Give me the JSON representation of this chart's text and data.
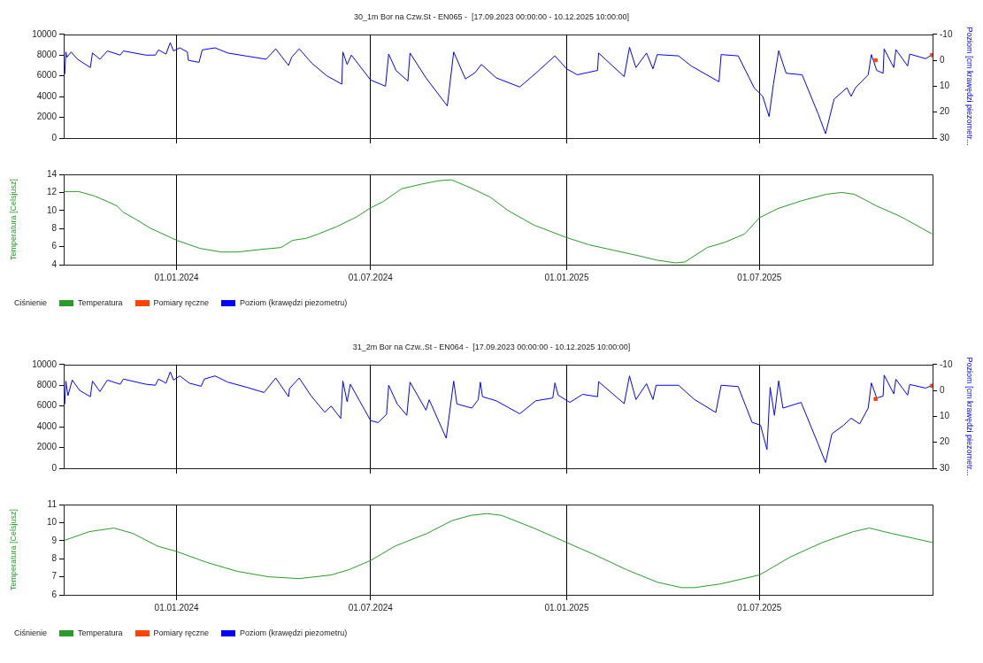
{
  "chart_data": [
    {
      "type": "line",
      "title": "30_1m Bor na Czw.St - EN065 -  [17.09.2023 00:00:00 - 10.12.2025 10:00:00]",
      "y2label": "Poziom [cm krawędzi piezometr...",
      "tick_labels": "y",
      "xlim": [
        "2023-09-17T00:00",
        "2025-12-10T10:00"
      ],
      "xticks": [
        "2024-01-01",
        "2024-07-01",
        "2025-01-01",
        "2025-07-01"
      ],
      "ylim": [
        0,
        10000
      ],
      "yticks": [
        0,
        2000,
        4000,
        6000,
        8000,
        10000
      ],
      "y2lim": [
        30,
        -10
      ],
      "y2ticks": [
        -10,
        0,
        10,
        20,
        30
      ],
      "grid": "x",
      "series": [
        {
          "name": "Ciśnienie",
          "axis": "y"
        },
        {
          "name": "Pomiary ręczne",
          "type": "scatter",
          "marker": "square",
          "axis": "y2",
          "color": "#ff4500",
          "x": [
            "2025-10-18",
            "2025-12-10"
          ],
          "values": [
            0,
            -2
          ]
        },
        {
          "name": "Poziom (krawędzi piezometru)",
          "type": "line",
          "axis": "y2",
          "color": "#0000ff",
          "x": [
            "2023-09-17",
            "2023-09-18",
            "2023-09-19",
            "2023-09-20",
            "2023-09-24",
            "2023-09-30",
            "2023-10-12",
            "2023-10-14",
            "2023-10-21",
            "2023-10-28",
            "2023-11-09",
            "2023-11-12",
            "2023-12-03",
            "2023-12-12",
            "2023-12-15",
            "2023-12-22",
            "2023-12-26",
            "2023-12-29",
            "2024-01-04",
            "2024-01-11",
            "2024-01-12",
            "2024-01-22",
            "2024-01-25",
            "2024-02-06",
            "2024-02-18",
            "2024-03-07",
            "2024-03-25",
            "2024-04-03",
            "2024-04-15",
            "2024-04-18",
            "2024-04-25",
            "2024-05-07",
            "2024-05-21",
            "2024-06-04",
            "2024-06-05",
            "2024-06-09",
            "2024-06-13",
            "2024-07-01",
            "2024-07-15",
            "2024-07-18",
            "2024-07-25",
            "2024-08-05",
            "2024-08-07",
            "2024-08-22",
            "2024-09-11",
            "2024-09-17",
            "2024-09-28",
            "2024-10-07",
            "2024-10-13",
            "2024-10-27",
            "2024-11-18",
            "2024-12-03",
            "2024-12-21",
            "2025-01-01",
            "2025-01-11",
            "2025-01-30",
            "2025-01-31",
            "2025-02-24",
            "2025-03-01",
            "2025-03-07",
            "2025-03-17",
            "2025-03-23",
            "2025-03-27",
            "2025-04-16",
            "2025-04-28",
            "2025-05-24",
            "2025-05-26",
            "2025-06-11",
            "2025-06-26",
            "2025-07-04",
            "2025-07-10",
            "2025-07-14",
            "2025-07-19",
            "2025-07-26",
            "2025-08-10",
            "2025-08-25",
            "2025-09-01",
            "2025-09-09",
            "2025-09-21",
            "2025-09-25",
            "2025-09-29",
            "2025-10-11",
            "2025-10-14",
            "2025-10-19",
            "2025-10-25",
            "2025-10-26",
            "2025-11-04",
            "2025-11-06",
            "2025-11-17",
            "2025-11-19",
            "2025-12-04",
            "2025-12-10"
          ],
          "values": [
            4,
            5.2,
            -3.2,
            -1.2,
            -3.2,
            -0.4,
            2.8,
            -2.8,
            -0.4,
            -3.6,
            -2,
            -3.6,
            -2,
            -2,
            -4,
            -2.4,
            -6.8,
            -3.6,
            -4.8,
            -3.2,
            0,
            0.8,
            -4,
            -4.8,
            -2.8,
            -1.6,
            -0.4,
            -4.4,
            2,
            -1.2,
            -4.4,
            1.2,
            6,
            9.2,
            -3.2,
            1.6,
            -2,
            7.6,
            10,
            -2.4,
            4,
            8,
            -2.8,
            6.8,
            17.6,
            -3.2,
            7.2,
            4.8,
            1.6,
            6.8,
            10.3,
            5,
            -1.7,
            3.3,
            5.6,
            3.9,
            -2.8,
            6.3,
            -5,
            2.8,
            -2.8,
            3.3,
            -2.2,
            -1.7,
            2.2,
            8.3,
            -2.2,
            -1.7,
            10.6,
            13.9,
            21.7,
            9.4,
            -3.7,
            5,
            5.6,
            20.6,
            28.3,
            15,
            10.6,
            13.9,
            10.6,
            5.6,
            -2.2,
            3.9,
            5,
            -4.4,
            2.8,
            -4.1,
            2.2,
            -2.4,
            -0.6,
            -2.2
          ]
        }
      ]
    },
    {
      "type": "line",
      "ylabel": "Temperatura [Celsjusz]",
      "xlim": [
        "2023-09-17T00:00",
        "2025-12-10T10:00"
      ],
      "xticks": [
        {
          "value": "2024-01-01",
          "label": "01.01.2024"
        },
        {
          "value": "2024-07-01",
          "label": "01.07.2024"
        },
        {
          "value": "2025-01-01",
          "label": "01.01.2025"
        },
        {
          "value": "2025-07-01",
          "label": "01.07.2025"
        }
      ],
      "ylim": [
        4,
        14
      ],
      "yticks": [
        4,
        6,
        8,
        10,
        12,
        14
      ],
      "grid": "x",
      "legend": "bottom",
      "series": [
        {
          "name": "Temperatura",
          "color": "#2a9a2a",
          "x": [
            "2023-09-17",
            "2023-10-01",
            "2023-10-16",
            "2023-10-28",
            "2023-11-06",
            "2023-11-12",
            "2023-11-24",
            "2023-12-08",
            "2024-01-01",
            "2024-01-23",
            "2024-02-12",
            "2024-02-27",
            "2024-03-21",
            "2024-04-08",
            "2024-04-19",
            "2024-05-01",
            "2024-05-13",
            "2024-05-30",
            "2024-06-18",
            "2024-07-01",
            "2024-07-13",
            "2024-07-30",
            "2024-08-17",
            "2024-09-03",
            "2024-09-15",
            "2024-10-03",
            "2024-10-21",
            "2024-11-07",
            "2024-12-01",
            "2025-01-01",
            "2025-01-22",
            "2025-02-14",
            "2025-03-09",
            "2025-03-27",
            "2025-04-13",
            "2025-04-22",
            "2025-05-13",
            "2025-05-30",
            "2025-06-17",
            "2025-07-01",
            "2025-07-18",
            "2025-08-10",
            "2025-09-02",
            "2025-09-16",
            "2025-09-28",
            "2025-10-19",
            "2025-11-11",
            "2025-12-10"
          ],
          "values": [
            12.1,
            12.1,
            11.6,
            11,
            10.5,
            9.8,
            9,
            8,
            6.7,
            5.8,
            5.4,
            5.4,
            5.7,
            5.9,
            6.7,
            6.9,
            7.4,
            8.2,
            9.3,
            10.3,
            11,
            12.4,
            12.9,
            13.3,
            13.4,
            12.5,
            11.5,
            10,
            8.4,
            7,
            6.2,
            5.6,
            5,
            4.5,
            4.2,
            4.3,
            5.9,
            6.5,
            7.4,
            9.2,
            10.2,
            11.1,
            11.8,
            12,
            11.8,
            10.5,
            9.3,
            7.4
          ]
        }
      ]
    },
    {
      "type": "line",
      "title": "31_2m Bor na Czw..St - EN064 -  [17.09.2023 00:00:00 - 10.12.2025 10:00:00]",
      "y2label": "Poziom [cm krawędzi piezometr...",
      "tick_labels": "y",
      "xlim": [
        "2023-09-17T00:00",
        "2025-12-10T10:00"
      ],
      "xticks": [
        "2024-01-01",
        "2024-07-01",
        "2025-01-01",
        "2025-07-01"
      ],
      "ylim": [
        0,
        10000
      ],
      "yticks": [
        0,
        2000,
        4000,
        6000,
        8000,
        10000
      ],
      "y2lim": [
        30,
        -10
      ],
      "y2ticks": [
        -10,
        0,
        10,
        20,
        30
      ],
      "grid": "x",
      "series": [
        {
          "name": "Ciśnienie",
          "axis": "y"
        },
        {
          "name": "Pomiary ręczne",
          "type": "scatter",
          "marker": "square",
          "axis": "y2",
          "color": "#ff4500",
          "x": [
            "2025-10-18",
            "2025-12-10"
          ],
          "values": [
            3.3,
            -1.8
          ]
        },
        {
          "name": "Poziom (krawędzi piezometru)",
          "type": "line",
          "axis": "y2",
          "color": "#0000ff",
          "x": [
            "2023-09-17",
            "2023-09-18",
            "2023-09-19",
            "2023-09-21",
            "2023-09-25",
            "2023-10-02",
            "2023-10-12",
            "2023-10-14",
            "2023-10-21",
            "2023-10-28",
            "2023-11-09",
            "2023-11-12",
            "2023-12-03",
            "2023-12-12",
            "2023-12-15",
            "2023-12-22",
            "2023-12-26",
            "2023-12-29",
            "2024-01-04",
            "2024-01-13",
            "2024-01-24",
            "2024-01-27",
            "2024-02-06",
            "2024-02-18",
            "2024-03-07",
            "2024-03-23",
            "2024-04-03",
            "2024-04-15",
            "2024-04-16",
            "2024-04-25",
            "2024-05-06",
            "2024-05-19",
            "2024-05-25",
            "2024-06-03",
            "2024-06-05",
            "2024-06-09",
            "2024-06-12",
            "2024-07-01",
            "2024-07-08",
            "2024-07-16",
            "2024-07-18",
            "2024-07-26",
            "2024-08-04",
            "2024-08-07",
            "2024-08-22",
            "2024-08-25",
            "2024-09-10",
            "2024-09-17",
            "2024-09-20",
            "2024-10-04",
            "2024-10-10",
            "2024-10-12",
            "2024-10-14",
            "2024-10-27",
            "2024-11-18",
            "2024-12-03",
            "2024-12-19",
            "2024-12-21",
            "2024-12-24",
            "2025-01-04",
            "2025-01-16",
            "2025-01-30",
            "2025-01-31",
            "2025-02-24",
            "2025-03-01",
            "2025-03-07",
            "2025-03-17",
            "2025-03-23",
            "2025-03-26",
            "2025-04-16",
            "2025-05-01",
            "2025-05-21",
            "2025-05-26",
            "2025-06-11",
            "2025-06-24",
            "2025-07-02",
            "2025-07-08",
            "2025-07-11",
            "2025-07-15",
            "2025-07-19",
            "2025-07-23",
            "2025-08-09",
            "2025-08-25",
            "2025-09-01",
            "2025-09-07",
            "2025-09-18",
            "2025-09-25",
            "2025-10-03",
            "2025-10-11",
            "2025-10-14",
            "2025-10-19",
            "2025-10-25",
            "2025-10-26",
            "2025-11-04",
            "2025-11-06",
            "2025-11-17",
            "2025-11-19",
            "2025-12-04",
            "2025-12-10"
          ],
          "values": [
            4.4,
            5.2,
            -3.6,
            2,
            -4,
            0,
            2.4,
            -3.6,
            0.4,
            -4,
            -2.4,
            -4.4,
            -2.4,
            -2,
            -4.4,
            -2.8,
            -7.2,
            -4,
            -5.6,
            -2.8,
            -1.6,
            -4.4,
            -5.6,
            -3.2,
            -1.2,
            0.8,
            -4.8,
            2.4,
            -0.8,
            -4.8,
            2,
            8.4,
            6,
            10.8,
            -3.6,
            4.4,
            -2.4,
            11.6,
            12.4,
            9.2,
            -2,
            5.2,
            9.6,
            -3.2,
            7.6,
            3.6,
            18.4,
            -3.6,
            5.2,
            6.8,
            3.6,
            -3.2,
            2.4,
            4,
            9,
            4,
            2.9,
            -2.9,
            1.8,
            4.6,
            1.5,
            2.4,
            -3.4,
            5.1,
            -5.6,
            3.5,
            -2.6,
            3.5,
            -2,
            -2,
            3.5,
            8.5,
            -2,
            -1.5,
            12.3,
            13.4,
            22.8,
            -1.2,
            9.6,
            -3.7,
            6.8,
            4.6,
            20.6,
            27.8,
            16.7,
            13.4,
            10.7,
            12.9,
            6.8,
            -2.9,
            2.9,
            2.2,
            -5.9,
            1.3,
            -4.3,
            1.8,
            -2.3,
            -0.9,
            -2
          ]
        }
      ]
    },
    {
      "type": "line",
      "ylabel": "Temperatura [Celsjusz]",
      "xlim": [
        "2023-09-17T00:00",
        "2025-12-10T10:00"
      ],
      "xticks": [
        {
          "value": "2024-01-01",
          "label": "01.01.2024"
        },
        {
          "value": "2024-07-01",
          "label": "01.07.2024"
        },
        {
          "value": "2025-01-01",
          "label": "01.01.2025"
        },
        {
          "value": "2025-07-01",
          "label": "01.07.2025"
        }
      ],
      "ylim": [
        6,
        11
      ],
      "yticks": [
        6,
        7,
        8,
        9,
        10,
        11
      ],
      "grid": "x",
      "legend": "bottom",
      "series": [
        {
          "name": "Temperatura",
          "color": "#2a9a2a",
          "x": [
            "2023-09-17",
            "2023-10-11",
            "2023-11-03",
            "2023-11-21",
            "2023-12-14",
            "2024-01-01",
            "2024-01-29",
            "2024-02-27",
            "2024-03-27",
            "2024-04-25",
            "2024-05-25",
            "2024-06-11",
            "2024-07-01",
            "2024-07-24",
            "2024-08-23",
            "2024-09-15",
            "2024-10-03",
            "2024-10-18",
            "2024-11-01",
            "2024-12-01",
            "2025-01-01",
            "2025-01-28",
            "2025-02-26",
            "2025-03-27",
            "2025-04-19",
            "2025-05-01",
            "2025-05-25",
            "2025-07-01",
            "2025-07-30",
            "2025-08-29",
            "2025-09-27",
            "2025-10-12",
            "2025-11-02",
            "2025-11-25",
            "2025-12-10"
          ],
          "values": [
            9,
            9.5,
            9.7,
            9.4,
            8.7,
            8.4,
            7.8,
            7.3,
            7,
            6.9,
            7.1,
            7.4,
            7.9,
            8.7,
            9.4,
            10.1,
            10.4,
            10.5,
            10.4,
            9.7,
            8.9,
            8.2,
            7.4,
            6.7,
            6.4,
            6.4,
            6.6,
            7.1,
            8.1,
            8.9,
            9.5,
            9.7,
            9.4,
            9.1,
            8.9
          ]
        }
      ]
    }
  ]
}
